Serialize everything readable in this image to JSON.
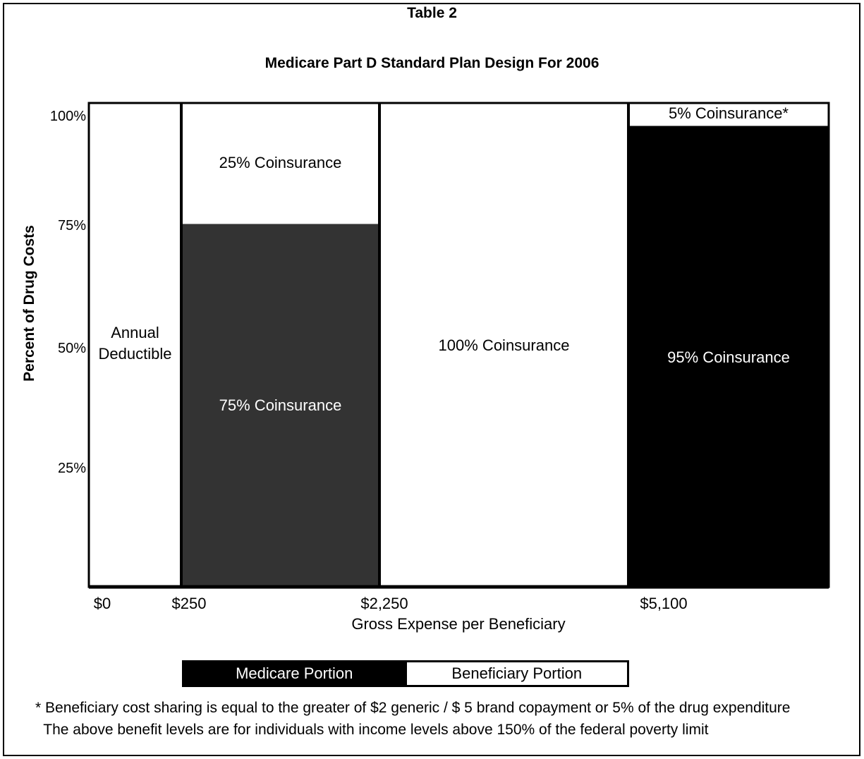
{
  "header": {
    "table_label": "Table 2"
  },
  "chart_data": {
    "type": "bar",
    "title": "Medicare Part D Standard Plan Design For 2006",
    "xlabel": "Gross Expense per Beneficiary",
    "ylabel": "Percent of Drug Costs",
    "x_ticks": [
      "$0",
      "$250",
      "$2,250",
      "$5,100"
    ],
    "y_ticks": [
      "25%",
      "50%",
      "75%",
      "100%"
    ],
    "ylim": [
      0,
      100
    ],
    "segments": [
      {
        "range": [
          "$0",
          "$250"
        ],
        "medicare": 0,
        "beneficiary": 100,
        "beneficiary_label": "Annual\nDeductible",
        "medicare_label": ""
      },
      {
        "range": [
          "$250",
          "$2,250"
        ],
        "medicare": 75,
        "beneficiary": 25,
        "beneficiary_label": "25% Coinsurance",
        "medicare_label": "75% Coinsurance"
      },
      {
        "range": [
          "$2,250",
          "$5,100"
        ],
        "medicare": 0,
        "beneficiary": 100,
        "beneficiary_label": "100% Coinsurance",
        "medicare_label": ""
      },
      {
        "range": [
          "$5,100",
          ""
        ],
        "medicare": 95,
        "beneficiary": 5,
        "beneficiary_label": "5% Coinsurance*",
        "medicare_label": "95% Coinsurance"
      }
    ],
    "legend": {
      "placement": "bottom",
      "items": [
        {
          "name": "Medicare Portion",
          "color": "#000000"
        },
        {
          "name": "Beneficiary Portion",
          "color": "#ffffff"
        }
      ]
    },
    "colors": {
      "medicare_first": "#333333",
      "medicare_last": "#000000",
      "beneficiary": "#ffffff"
    }
  },
  "footnotes": [
    "* Beneficiary cost sharing is equal to the greater of $2 generic / $ 5 brand copayment or 5% of the drug expenditure",
    "  The above benefit levels are for individuals with income levels above 150% of the federal poverty limit"
  ]
}
